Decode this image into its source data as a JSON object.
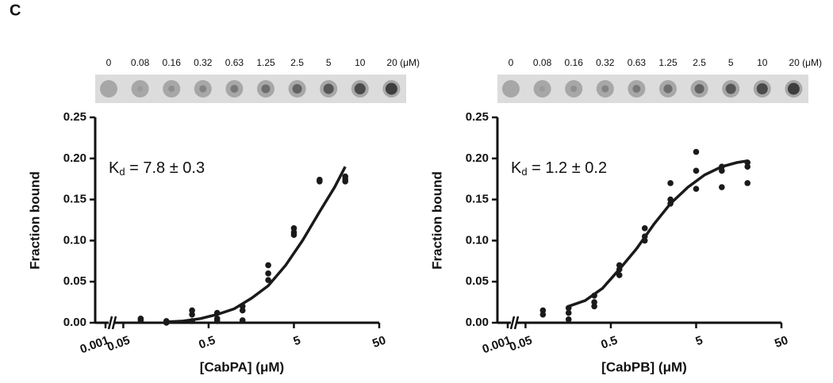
{
  "panel_label": "C",
  "chart_data": [
    {
      "type": "scatter",
      "blot_labels": [
        "0",
        "0.08",
        "0.16",
        "0.32",
        "0.63",
        "1.25",
        "2.5",
        "5",
        "10",
        "20 (μM)"
      ],
      "annotation": {
        "symbol": "K",
        "subscript": "d",
        "text": " = 7.8 ± 0.3"
      },
      "xlabel": "[CabPA] (μM)",
      "ylabel": "Fraction bound",
      "log_x": true,
      "color": "#1a1a1a",
      "xlim": [
        0.04,
        50
      ],
      "xticks": [
        0.05,
        0.5,
        5,
        50
      ],
      "xbreak_tick": 0.001,
      "ylim": [
        0,
        0.25
      ],
      "yticks": [
        {
          "value": 0,
          "label": "0.00"
        },
        {
          "value": 0.05,
          "label": "0.05"
        },
        {
          "value": 0.1,
          "label": "0.10"
        },
        {
          "value": 0.15,
          "label": "0.15"
        },
        {
          "value": 0.2,
          "label": "0.20"
        },
        {
          "value": 0.25,
          "label": "0.25"
        }
      ],
      "points": {
        "x": [
          0.08,
          0.08,
          0.16,
          0.16,
          0.32,
          0.32,
          0.32,
          0.63,
          0.63,
          0.63,
          1.25,
          1.25,
          1.25,
          2.5,
          2.5,
          2.5,
          5,
          5,
          5,
          10,
          10,
          20,
          20,
          20
        ],
        "y": [
          0.005,
          0.003,
          0.0,
          0.002,
          0.015,
          0.01,
          0.002,
          0.012,
          0.005,
          0.002,
          0.02,
          0.015,
          0.003,
          0.07,
          0.06,
          0.052,
          0.115,
          0.11,
          0.107,
          0.174,
          0.172,
          0.178,
          0.175,
          0.172
        ]
      },
      "fit": {
        "x": [
          0.16,
          0.25,
          0.4,
          0.63,
          1.0,
          1.6,
          2.5,
          4,
          6.3,
          10,
          15,
          20
        ],
        "y": [
          0.001,
          0.002,
          0.005,
          0.01,
          0.017,
          0.03,
          0.045,
          0.07,
          0.1,
          0.135,
          0.165,
          0.19
        ]
      }
    },
    {
      "type": "scatter",
      "blot_labels": [
        "0",
        "0.08",
        "0.16",
        "0.32",
        "0.63",
        "1.25",
        "2.5",
        "5",
        "10",
        "20 (μM)"
      ],
      "annotation": {
        "symbol": "K",
        "subscript": "d",
        "text": " = 1.2 ± 0.2"
      },
      "xlabel": "[CabPB]  (μM)",
      "ylabel": "Fraction bound",
      "log_x": true,
      "color": "#1a1a1a",
      "xlim": [
        0.04,
        50
      ],
      "xticks": [
        0.05,
        0.5,
        5,
        50
      ],
      "xbreak_tick": 0.001,
      "ylim": [
        0,
        0.25
      ],
      "yticks": [
        {
          "value": 0,
          "label": "0.00"
        },
        {
          "value": 0.05,
          "label": "0.05"
        },
        {
          "value": 0.1,
          "label": "0.10"
        },
        {
          "value": 0.15,
          "label": "0.15"
        },
        {
          "value": 0.2,
          "label": "0.20"
        },
        {
          "value": 0.25,
          "label": "0.25"
        }
      ],
      "points": {
        "x": [
          0.08,
          0.08,
          0.16,
          0.16,
          0.16,
          0.32,
          0.32,
          0.32,
          0.63,
          0.63,
          0.63,
          1.25,
          1.25,
          1.25,
          2.5,
          2.5,
          2.5,
          5,
          5,
          5,
          10,
          10,
          10,
          20,
          20,
          20
        ],
        "y": [
          0.015,
          0.01,
          0.018,
          0.012,
          0.004,
          0.033,
          0.025,
          0.02,
          0.07,
          0.065,
          0.058,
          0.115,
          0.105,
          0.1,
          0.17,
          0.15,
          0.145,
          0.208,
          0.185,
          0.163,
          0.19,
          0.185,
          0.165,
          0.195,
          0.19,
          0.17
        ]
      },
      "fit": {
        "x": [
          0.16,
          0.25,
          0.4,
          0.63,
          1.0,
          1.6,
          2.5,
          4,
          6.3,
          10,
          15,
          20
        ],
        "y": [
          0.02,
          0.027,
          0.042,
          0.065,
          0.09,
          0.12,
          0.145,
          0.165,
          0.18,
          0.19,
          0.195,
          0.197
        ]
      }
    }
  ]
}
